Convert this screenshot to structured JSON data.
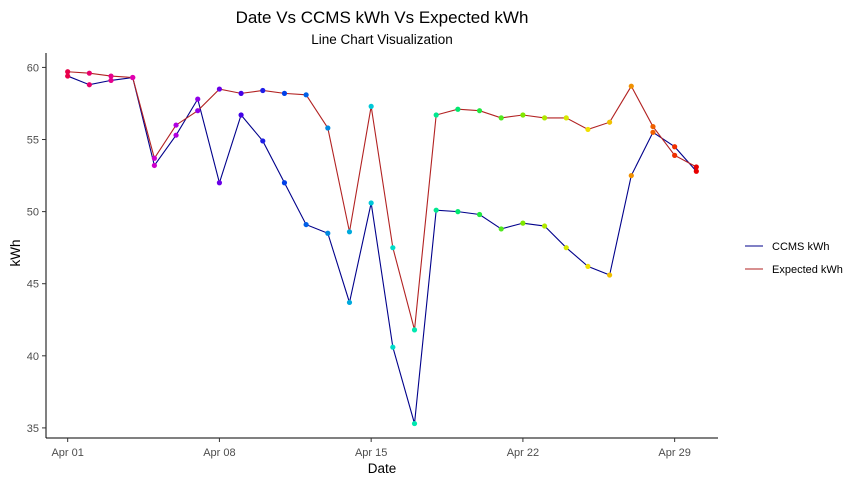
{
  "chart_data": {
    "type": "line",
    "title": "Date Vs CCMS kWh Vs Expected kWh",
    "subtitle": "Line Chart Visualization",
    "xlabel": "Date",
    "ylabel": "kWh",
    "x_ticks": [
      "Apr 01",
      "Apr 08",
      "Apr 15",
      "Apr 22",
      "Apr 29"
    ],
    "y_ticks": [
      "35",
      "40",
      "45",
      "50",
      "55",
      "60"
    ],
    "ylim": [
      34.3,
      61
    ],
    "xlim": [
      "Mar 31",
      "May 01"
    ],
    "grid": false,
    "legend_position": "right",
    "dates": [
      "Apr 01",
      "Apr 02",
      "Apr 03",
      "Apr 04",
      "Apr 05",
      "Apr 06",
      "Apr 07",
      "Apr 08",
      "Apr 09",
      "Apr 10",
      "Apr 11",
      "Apr 12",
      "Apr 13",
      "Apr 14",
      "Apr 15",
      "Apr 16",
      "Apr 17",
      "Apr 18",
      "Apr 19",
      "Apr 20",
      "Apr 21",
      "Apr 22",
      "Apr 23",
      "Apr 24",
      "Apr 25",
      "Apr 26",
      "Apr 27",
      "Apr 28",
      "Apr 29",
      "Apr 30"
    ],
    "series": [
      {
        "name": "CCMS kWh",
        "color": "#00008b",
        "values": [
          59.4,
          58.8,
          59.1,
          59.3,
          53.2,
          55.3,
          57.8,
          52.0,
          56.7,
          54.9,
          52.0,
          49.1,
          48.5,
          43.7,
          50.6,
          40.6,
          35.3,
          50.1,
          50.0,
          49.8,
          48.8,
          49.2,
          49.0,
          47.5,
          46.2,
          45.6,
          52.5,
          55.5,
          54.5,
          52.8
        ]
      },
      {
        "name": "Expected kWh",
        "color": "#b22222",
        "values": [
          59.7,
          59.6,
          59.4,
          59.3,
          53.7,
          56.0,
          57.0,
          58.5,
          58.2,
          58.4,
          58.2,
          58.1,
          55.8,
          48.6,
          57.3,
          47.5,
          41.8,
          56.7,
          57.1,
          57.0,
          56.5,
          56.7,
          56.5,
          56.5,
          55.7,
          56.2,
          58.7,
          55.9,
          53.9,
          53.1
        ]
      }
    ],
    "point_colors": [
      "#e8004a",
      "#e8006c",
      "#e6008d",
      "#e000b0",
      "#cc00cc",
      "#b000e0",
      "#9000e8",
      "#6a00e8",
      "#4400e8",
      "#1e1ee8",
      "#0040e8",
      "#0060e8",
      "#0088e0",
      "#00aadd",
      "#00c8d8",
      "#00dcc8",
      "#00e8b0",
      "#00e890",
      "#00e870",
      "#20e840",
      "#50e820",
      "#80e800",
      "#b0e800",
      "#d8e800",
      "#f0e000",
      "#f0c000",
      "#f09000",
      "#f06000",
      "#f03000",
      "#e80000"
    ]
  }
}
